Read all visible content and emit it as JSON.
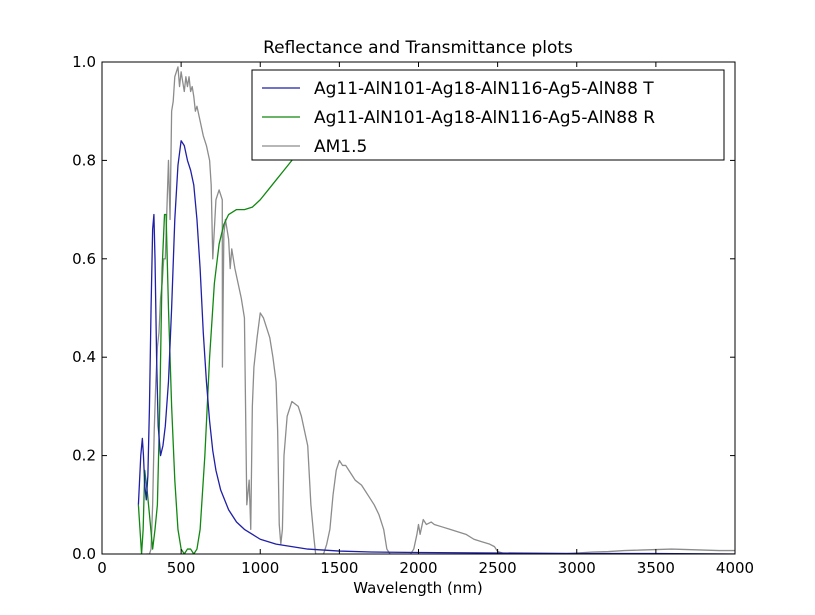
{
  "chart_data": {
    "type": "line",
    "title": "Reflectance and Transmittance plots",
    "xlabel": "Wavelength (nm)",
    "ylabel": "",
    "xlim": [
      0,
      4000
    ],
    "ylim": [
      0,
      1.0
    ],
    "xticks": [
      0,
      500,
      1000,
      1500,
      2000,
      2500,
      3000,
      3500,
      4000
    ],
    "yticks": [
      0.0,
      0.2,
      0.4,
      0.6,
      0.8,
      1.0
    ],
    "xtick_labels": [
      "0",
      "500",
      "1000",
      "1500",
      "2000",
      "2500",
      "3000",
      "3500",
      "4000"
    ],
    "ytick_labels": [
      "0.0",
      "0.2",
      "0.4",
      "0.6",
      "0.8",
      "1.0"
    ],
    "grid": false,
    "legend_position": "top-right",
    "series": [
      {
        "name": "Ag11-AlN101-Ag18-AlN116-Ag5-AlN88 T",
        "color": "#1f1fa8",
        "x": [
          230,
          245,
          255,
          262,
          270,
          280,
          290,
          300,
          310,
          320,
          328,
          335,
          345,
          355,
          370,
          385,
          400,
          420,
          440,
          460,
          480,
          500,
          520,
          540,
          560,
          580,
          600,
          620,
          640,
          660,
          680,
          700,
          720,
          750,
          800,
          850,
          900,
          950,
          1000,
          1100,
          1200,
          1300,
          1400,
          1500,
          1700,
          2000,
          2500,
          3000,
          3500,
          4000
        ],
        "values": [
          0.1,
          0.2,
          0.235,
          0.2,
          0.14,
          0.11,
          0.16,
          0.3,
          0.5,
          0.66,
          0.69,
          0.6,
          0.4,
          0.26,
          0.2,
          0.22,
          0.26,
          0.35,
          0.5,
          0.68,
          0.79,
          0.84,
          0.83,
          0.8,
          0.78,
          0.75,
          0.68,
          0.58,
          0.45,
          0.35,
          0.27,
          0.21,
          0.17,
          0.13,
          0.09,
          0.065,
          0.05,
          0.04,
          0.03,
          0.02,
          0.015,
          0.01,
          0.008,
          0.006,
          0.004,
          0.003,
          0.002,
          0.001,
          0.001,
          0.0
        ]
      },
      {
        "name": "Ag11-AlN101-Ag18-AlN116-Ag5-AlN88 R",
        "color": "#118811",
        "x": [
          230,
          240,
          250,
          260,
          270,
          285,
          300,
          320,
          335,
          350,
          365,
          380,
          395,
          405,
          420,
          440,
          460,
          480,
          500,
          520,
          540,
          560,
          580,
          600,
          620,
          650,
          680,
          710,
          740,
          770,
          800,
          850,
          900,
          950,
          1000,
          1050,
          1100,
          1150,
          1200,
          1250,
          1300,
          1330,
          1360
        ],
        "values": [
          0.1,
          0.05,
          0.0,
          0.05,
          0.17,
          0.13,
          0.08,
          0.01,
          0.05,
          0.1,
          0.3,
          0.58,
          0.69,
          0.69,
          0.5,
          0.3,
          0.15,
          0.05,
          0.01,
          0.0,
          0.01,
          0.01,
          0.0,
          0.01,
          0.05,
          0.2,
          0.4,
          0.55,
          0.63,
          0.67,
          0.69,
          0.7,
          0.7,
          0.705,
          0.72,
          0.74,
          0.76,
          0.78,
          0.8,
          0.82,
          0.84,
          0.86,
          0.88
        ]
      },
      {
        "name": "AM1.5",
        "color": "#8c8c8c",
        "x": [
          280,
          300,
          310,
          320,
          330,
          340,
          350,
          360,
          370,
          380,
          390,
          400,
          410,
          420,
          430,
          440,
          450,
          460,
          470,
          480,
          490,
          500,
          510,
          520,
          530,
          540,
          550,
          560,
          570,
          580,
          590,
          600,
          620,
          640,
          660,
          680,
          690,
          700,
          720,
          730,
          740,
          760,
          761,
          770,
          780,
          800,
          810,
          820,
          840,
          860,
          880,
          900,
          915,
          930,
          940,
          950,
          960,
          980,
          1000,
          1020,
          1040,
          1060,
          1080,
          1100,
          1110,
          1120,
          1130,
          1140,
          1150,
          1170,
          1200,
          1240,
          1260,
          1280,
          1300,
          1320,
          1340,
          1350,
          1360,
          1370,
          1380,
          1390,
          1400,
          1420,
          1440,
          1460,
          1480,
          1500,
          1520,
          1540,
          1560,
          1580,
          1600,
          1640,
          1680,
          1720,
          1750,
          1780,
          1800,
          1820,
          1850,
          1900,
          1950,
          1970,
          1990,
          2000,
          2010,
          2030,
          2050,
          2080,
          2100,
          2150,
          2200,
          2250,
          2300,
          2350,
          2400,
          2450,
          2480,
          2500,
          2550,
          2600,
          2700,
          2800,
          2900,
          3000,
          3100,
          3200,
          3300,
          3400,
          3500,
          3600,
          3700,
          3800,
          3900,
          4000
        ],
        "values": [
          0.0,
          0.0,
          0.01,
          0.1,
          0.25,
          0.35,
          0.42,
          0.45,
          0.52,
          0.55,
          0.6,
          0.6,
          0.7,
          0.8,
          0.68,
          0.9,
          0.92,
          0.97,
          0.98,
          0.99,
          0.95,
          0.98,
          0.96,
          0.94,
          0.97,
          0.95,
          0.97,
          0.94,
          0.95,
          0.93,
          0.9,
          0.91,
          0.88,
          0.85,
          0.83,
          0.8,
          0.75,
          0.6,
          0.72,
          0.73,
          0.74,
          0.72,
          0.38,
          0.65,
          0.68,
          0.64,
          0.58,
          0.62,
          0.58,
          0.55,
          0.52,
          0.48,
          0.1,
          0.15,
          0.05,
          0.3,
          0.38,
          0.44,
          0.49,
          0.48,
          0.46,
          0.44,
          0.4,
          0.35,
          0.25,
          0.06,
          0.02,
          0.05,
          0.2,
          0.28,
          0.31,
          0.3,
          0.28,
          0.25,
          0.22,
          0.1,
          0.03,
          0.0,
          0.0,
          0.0,
          0.0,
          0.0,
          0.0,
          0.02,
          0.05,
          0.12,
          0.17,
          0.19,
          0.18,
          0.18,
          0.17,
          0.16,
          0.15,
          0.14,
          0.12,
          0.1,
          0.08,
          0.05,
          0.01,
          0.0,
          0.0,
          0.0,
          0.0,
          0.01,
          0.04,
          0.06,
          0.04,
          0.07,
          0.06,
          0.065,
          0.06,
          0.055,
          0.05,
          0.045,
          0.04,
          0.03,
          0.025,
          0.02,
          0.015,
          0.005,
          0.0,
          0.0,
          0.0,
          0.0,
          0.0,
          0.002,
          0.004,
          0.005,
          0.007,
          0.008,
          0.009,
          0.01,
          0.009,
          0.008,
          0.007,
          0.007
        ]
      }
    ]
  }
}
